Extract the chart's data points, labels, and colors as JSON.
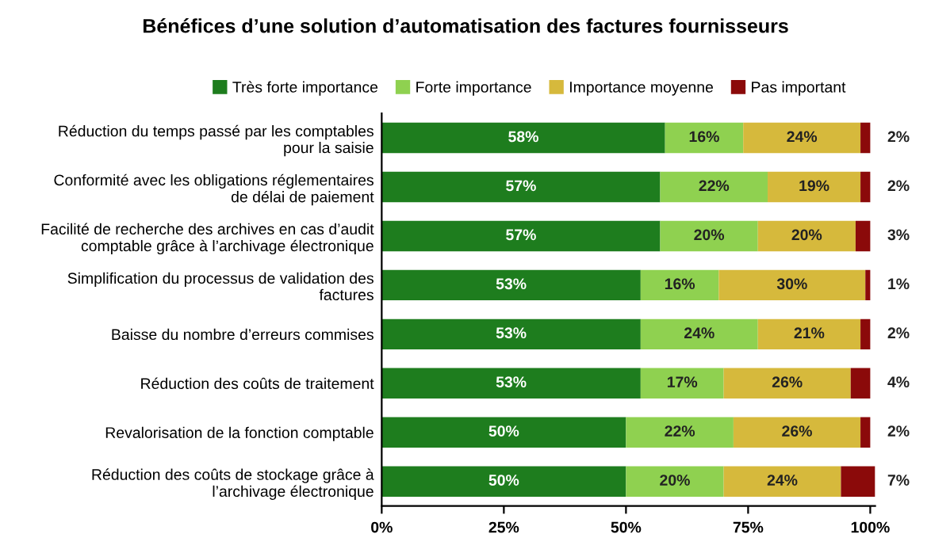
{
  "chart_data": {
    "type": "bar",
    "orientation": "horizontal",
    "stacked": true,
    "title": "Bénéfices d’une solution d’automatisation des factures fournisseurs",
    "categories": [
      "Réduction du temps passé par les comptables\npour la saisie",
      "Conformité avec les obligations réglementaires\nde délai de paiement",
      "Facilité de recherche des archives en cas d’audit\ncomptable grâce à l’archivage électronique",
      "Simplification du processus de validation des\nfactures",
      "Baisse du nombre d’erreurs commises",
      "Réduction des coûts de traitement",
      "Revalorisation de la fonction comptable",
      "Réduction des coûts de stockage grâce à\nl’archivage électronique"
    ],
    "series": [
      {
        "name": "Très forte importance",
        "color": "#1e7d1e",
        "values": [
          58,
          57,
          57,
          53,
          53,
          53,
          50,
          50
        ],
        "value_labels": [
          "58%",
          "57%",
          "57%",
          "53%",
          "53%",
          "53%",
          "50%",
          "50%"
        ]
      },
      {
        "name": "Forte importance",
        "color": "#8fd150",
        "values": [
          16,
          22,
          20,
          16,
          24,
          17,
          22,
          20
        ],
        "value_labels": [
          "16%",
          "22%",
          "20%",
          "16%",
          "24%",
          "17%",
          "22%",
          "20%"
        ]
      },
      {
        "name": "Importance moyenne",
        "color": "#d6b93c",
        "values": [
          24,
          19,
          20,
          30,
          21,
          26,
          26,
          24
        ],
        "value_labels": [
          "24%",
          "19%",
          "20%",
          "30%",
          "21%",
          "26%",
          "26%",
          "24%"
        ]
      },
      {
        "name": "Pas important",
        "color": "#8b0a0a",
        "values": [
          2,
          2,
          3,
          1,
          2,
          4,
          2,
          7
        ],
        "value_labels": [
          "2%",
          "2%",
          "3%",
          "1%",
          "2%",
          "4%",
          "2%",
          "7%"
        ]
      }
    ],
    "xlim": [
      0,
      101
    ],
    "xticks": [
      {
        "value": 0,
        "label": "0%"
      },
      {
        "value": 25,
        "label": "25%"
      },
      {
        "value": 50,
        "label": "50%"
      },
      {
        "value": 75,
        "label": "75%"
      },
      {
        "value": 100,
        "label": "100%"
      }
    ],
    "grid": false,
    "legend": "top"
  }
}
